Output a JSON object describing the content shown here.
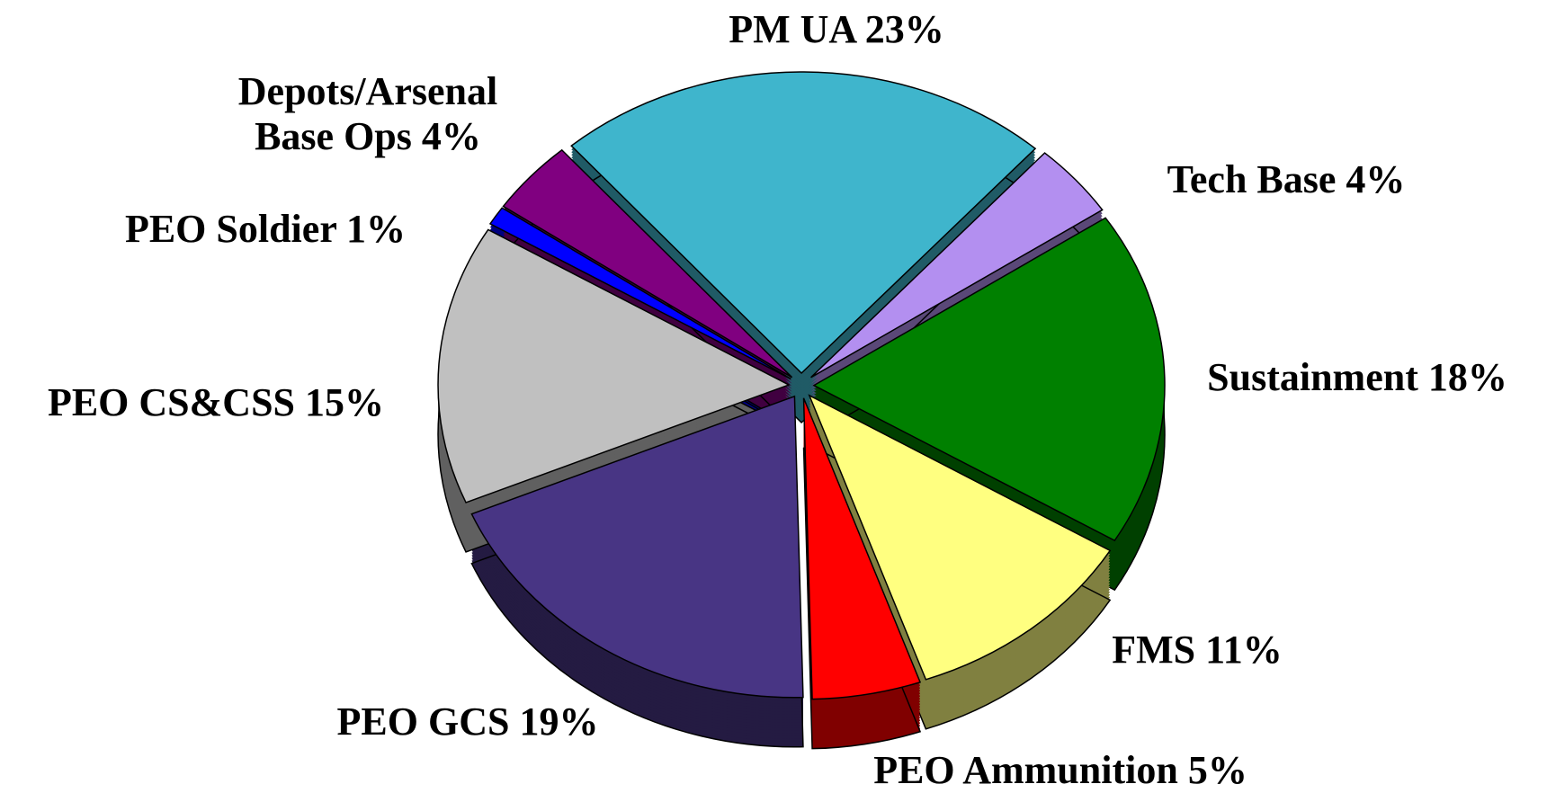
{
  "chart_data": {
    "type": "pie",
    "categories": [
      "PM UA",
      "Tech Base",
      "Sustainment",
      "FMS",
      "PEO Ammunition",
      "PEO GCS",
      "PEO CS&CSS",
      "PEO Soldier",
      "Depots/Arsenal Base Ops"
    ],
    "values": [
      23,
      4,
      18,
      11,
      5,
      19,
      15,
      1,
      4
    ],
    "value_labels": [
      "23%",
      "4%",
      "18%",
      "11%",
      "5%",
      "19%",
      "15%",
      "1%",
      "4%"
    ],
    "colors": [
      "#3fb5cc",
      "#b38ff0",
      "#008000",
      "#ffff80",
      "#ff0000",
      "#483584",
      "#c0c0c0",
      "#0000ff",
      "#800080"
    ]
  }
}
